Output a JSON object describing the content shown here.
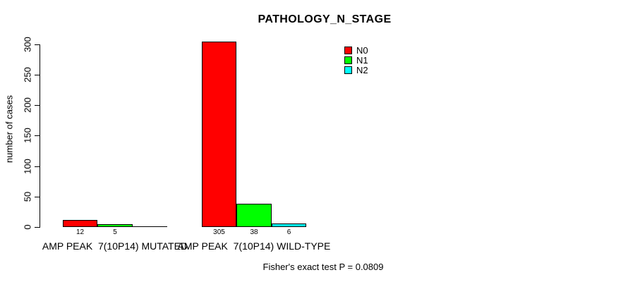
{
  "page": {
    "title": "PATHOLOGY_N_STAGE",
    "ylabel": "number of cases",
    "footer": "Fisher's exact test P = 0.0809"
  },
  "chart_data": {
    "type": "bar",
    "title": "PATHOLOGY_N_STAGE",
    "xlabel": "",
    "ylabel": "number of cases",
    "categories": [
      "AMP PEAK  7(10P14) MUTATED",
      "AMP PEAK  7(10P14) WILD-TYPE"
    ],
    "series": [
      {
        "name": "N0",
        "color": "#ff0000",
        "values": [
          12,
          305
        ]
      },
      {
        "name": "N1",
        "color": "#00ff00",
        "values": [
          5,
          38
        ]
      },
      {
        "name": "N2",
        "color": "#00ffff",
        "values": [
          0,
          6
        ]
      }
    ],
    "bar_value_labels": [
      [
        "12",
        "5",
        ""
      ],
      [
        "305",
        "38",
        "6"
      ]
    ],
    "yticks": [
      0,
      50,
      100,
      150,
      200,
      250,
      300
    ],
    "ylim": [
      0,
      310
    ],
    "grid": false,
    "legend_position": "top-right",
    "legend_entries": [
      "N0",
      "N1",
      "N2"
    ],
    "annotation": "Fisher's exact test P = 0.0809"
  }
}
